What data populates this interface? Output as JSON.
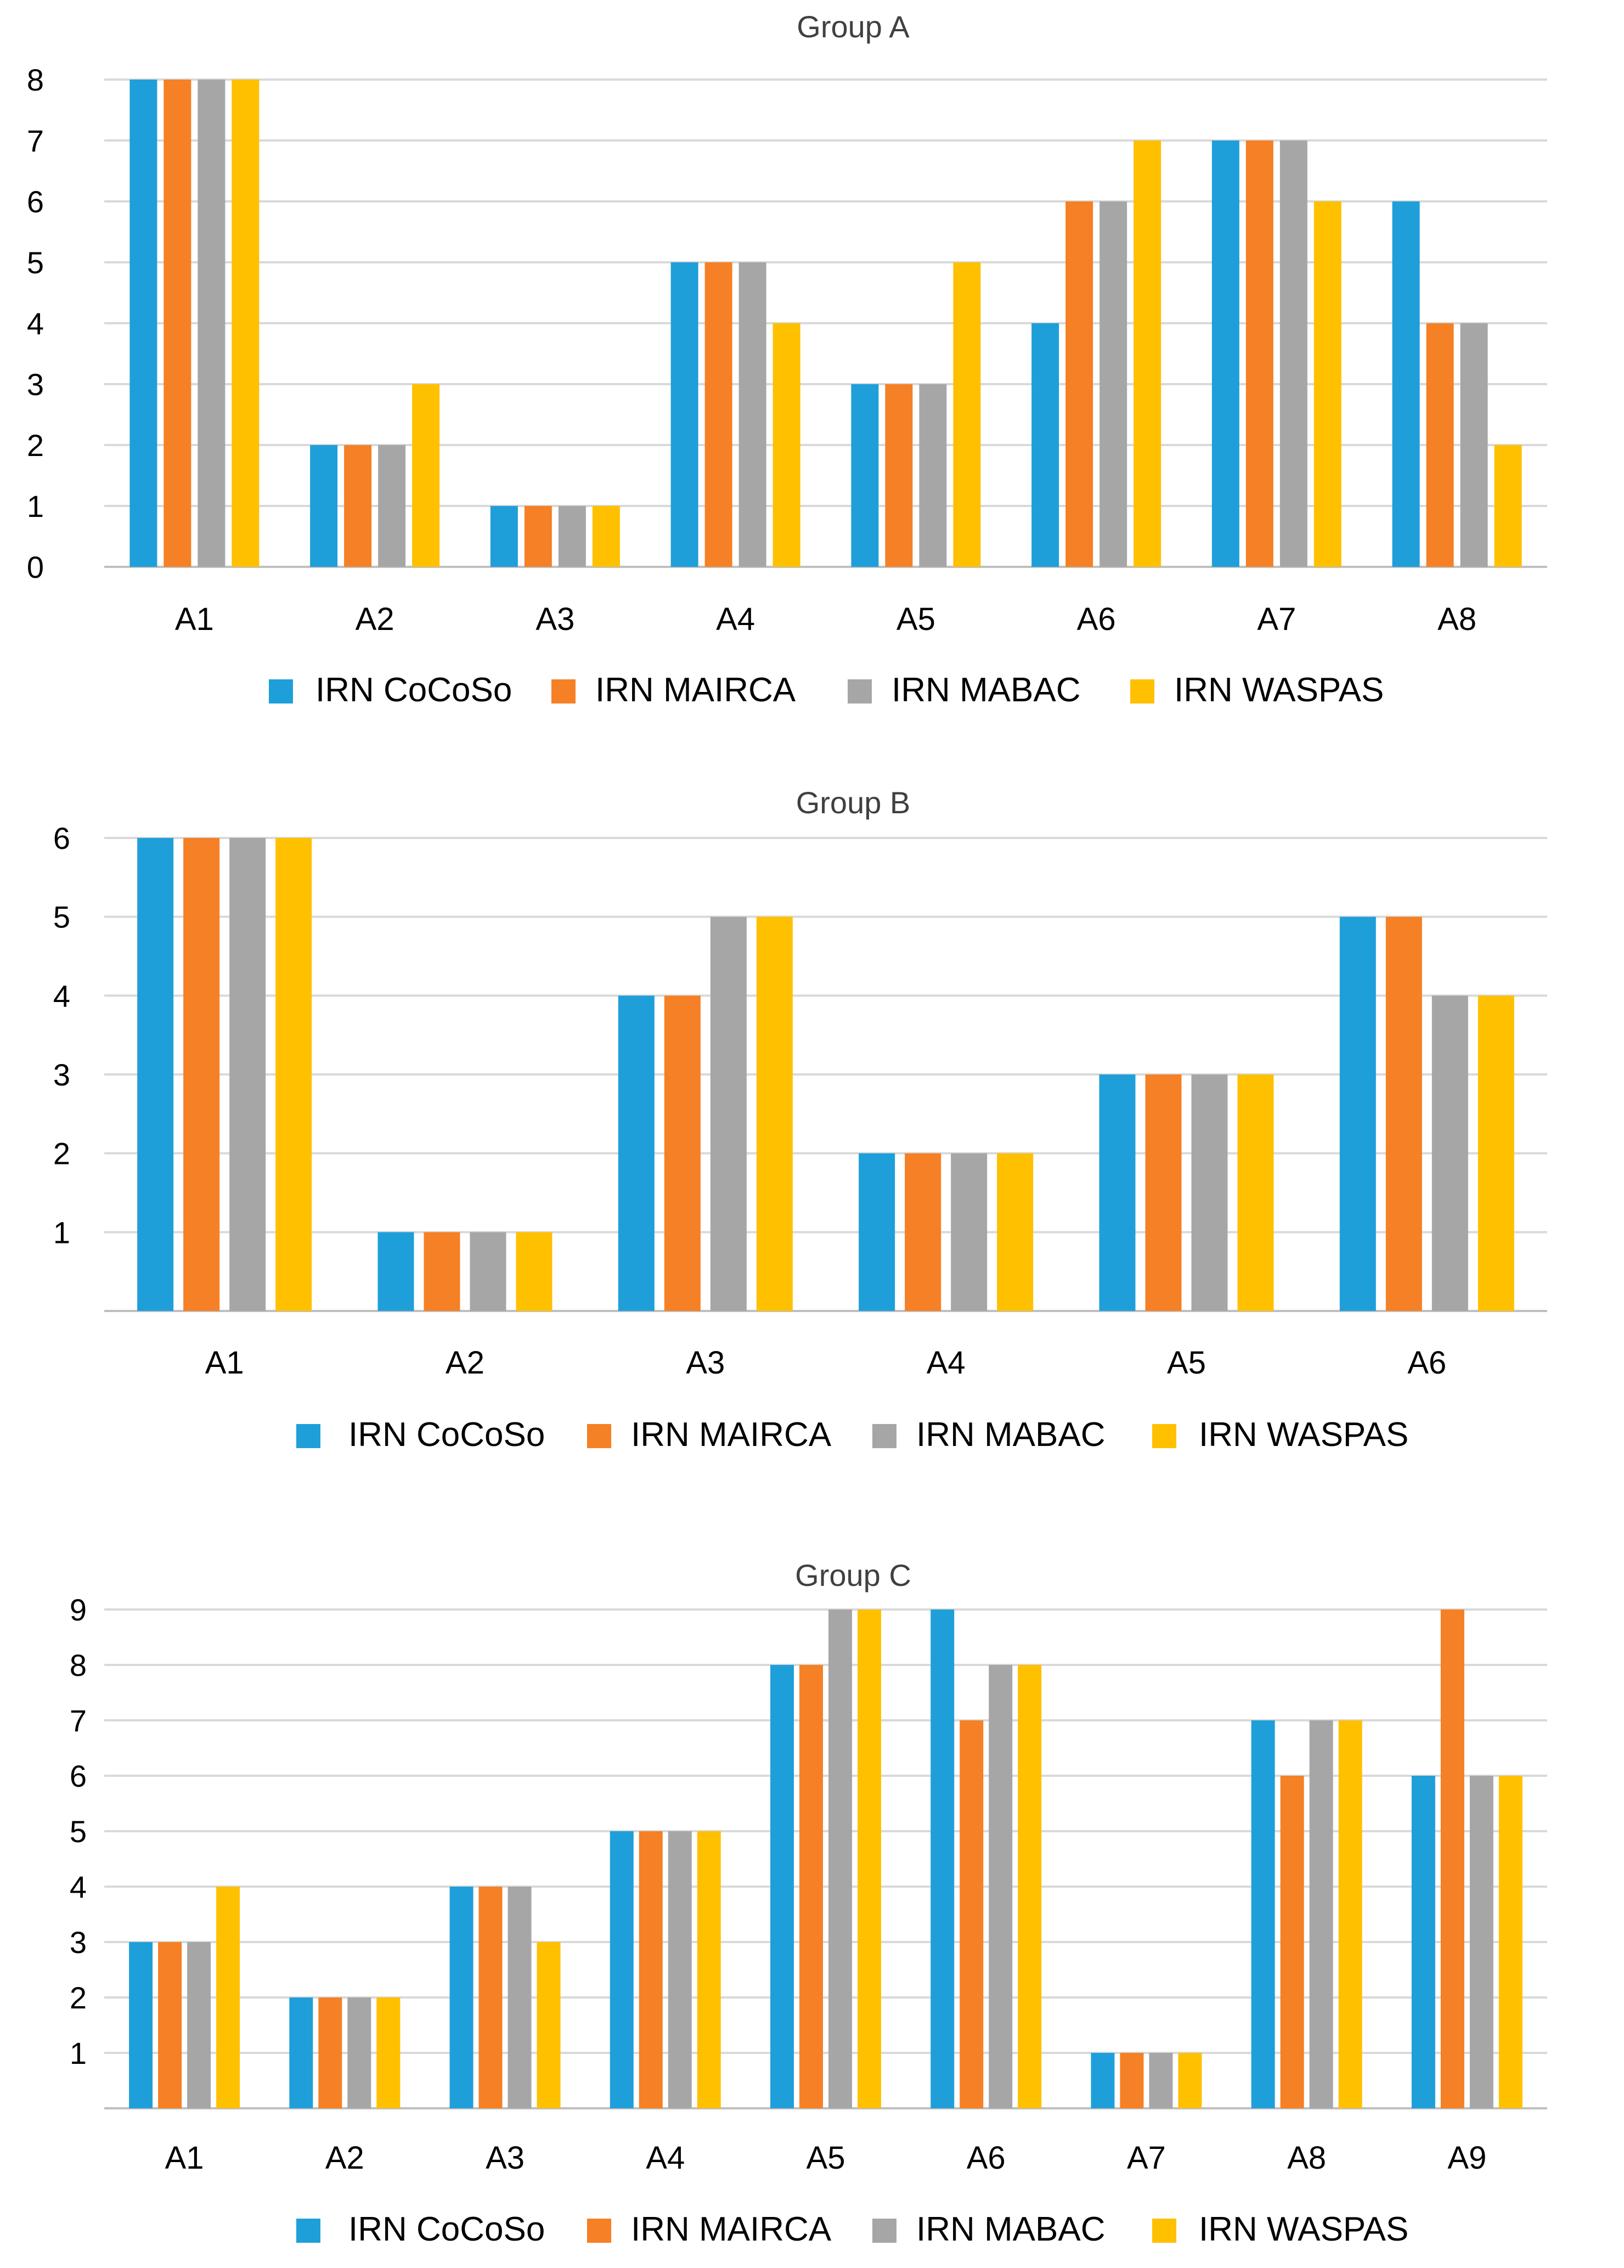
{
  "chart_data": [
    {
      "type": "bar",
      "title": "Group A",
      "categories": [
        "A1",
        "A2",
        "A3",
        "A4",
        "A5",
        "A6",
        "A7",
        "A8"
      ],
      "series": [
        {
          "name": "IRN CoCoSo",
          "color": "#1f9fd9",
          "values": [
            8,
            2,
            1,
            5,
            3,
            4,
            7,
            6
          ]
        },
        {
          "name": "IRN MAIRCA",
          "color": "#f58025",
          "values": [
            8,
            2,
            1,
            5,
            3,
            6,
            7,
            4
          ]
        },
        {
          "name": "IRN MABAC",
          "color": "#a6a6a6",
          "values": [
            8,
            2,
            1,
            5,
            3,
            6,
            7,
            4
          ]
        },
        {
          "name": "IRN WASPAS",
          "color": "#ffc000",
          "values": [
            8,
            3,
            1,
            4,
            5,
            7,
            6,
            2
          ]
        }
      ],
      "yticks": [
        0,
        1,
        2,
        3,
        4,
        5,
        6,
        7,
        8
      ],
      "ylim": [
        0,
        8
      ],
      "xlabel": "",
      "ylabel": "",
      "grid": true,
      "legend": "bottom"
    },
    {
      "type": "bar",
      "title": "Group B",
      "categories": [
        "A1",
        "A2",
        "A3",
        "A4",
        "A5",
        "A6"
      ],
      "series": [
        {
          "name": "IRN CoCoSo",
          "color": "#1f9fd9",
          "values": [
            6,
            1,
            4,
            2,
            3,
            5
          ]
        },
        {
          "name": "IRN MAIRCA",
          "color": "#f58025",
          "values": [
            6,
            1,
            4,
            2,
            3,
            5
          ]
        },
        {
          "name": "IRN MABAC",
          "color": "#a6a6a6",
          "values": [
            6,
            1,
            5,
            2,
            3,
            4
          ]
        },
        {
          "name": "IRN WASPAS",
          "color": "#ffc000",
          "values": [
            6,
            1,
            5,
            2,
            3,
            4
          ]
        }
      ],
      "yticks": [
        1,
        2,
        3,
        4,
        5,
        6
      ],
      "ylim": [
        0,
        6
      ],
      "xlabel": "",
      "ylabel": "",
      "grid": true,
      "legend": "bottom"
    },
    {
      "type": "bar",
      "title": "Group C",
      "categories": [
        "A1",
        "A2",
        "A3",
        "A4",
        "A5",
        "A6",
        "A7",
        "A8",
        "A9"
      ],
      "series": [
        {
          "name": "IRN CoCoSo",
          "color": "#1f9fd9",
          "values": [
            3,
            2,
            4,
            5,
            8,
            9,
            1,
            7,
            6
          ]
        },
        {
          "name": "IRN MAIRCA",
          "color": "#f58025",
          "values": [
            3,
            2,
            4,
            5,
            8,
            7,
            1,
            6,
            9
          ]
        },
        {
          "name": "IRN MABAC",
          "color": "#a6a6a6",
          "values": [
            3,
            2,
            4,
            5,
            9,
            8,
            1,
            7,
            6
          ]
        },
        {
          "name": "IRN WASPAS",
          "color": "#ffc000",
          "values": [
            4,
            2,
            3,
            5,
            9,
            8,
            1,
            7,
            6
          ]
        }
      ],
      "yticks": [
        1,
        2,
        3,
        4,
        5,
        6,
        7,
        8,
        9
      ],
      "ylim": [
        0,
        9
      ],
      "xlabel": "",
      "ylabel": "",
      "grid": true,
      "legend": "bottom"
    }
  ]
}
